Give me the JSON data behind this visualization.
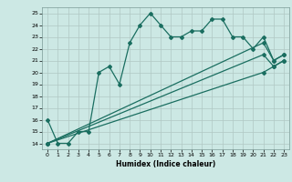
{
  "xlabel": "Humidex (Indice chaleur)",
  "background_color": "#cce8e4",
  "grid_color": "#b0c8c4",
  "line_color": "#1a6e60",
  "xlim": [
    -0.5,
    23.5
  ],
  "ylim": [
    13.5,
    25.5
  ],
  "xticks": [
    0,
    1,
    2,
    3,
    4,
    5,
    6,
    7,
    8,
    9,
    10,
    11,
    12,
    13,
    14,
    15,
    16,
    17,
    18,
    19,
    20,
    21,
    22,
    23
  ],
  "yticks": [
    14,
    15,
    16,
    17,
    18,
    19,
    20,
    21,
    22,
    23,
    24,
    25
  ],
  "series1_x": [
    0,
    1,
    2,
    3,
    4,
    5,
    6,
    7,
    8,
    9,
    10,
    11,
    12,
    13,
    14,
    15,
    16,
    17,
    18,
    19,
    20,
    21,
    22,
    23
  ],
  "series1_y": [
    16,
    14,
    14,
    15,
    15,
    20,
    20.5,
    19,
    22.5,
    24,
    25,
    24,
    23,
    23,
    23.5,
    23.5,
    24.5,
    24.5,
    23,
    23,
    22,
    23,
    21,
    21.5
  ],
  "series2_x": [
    0,
    21,
    22,
    23
  ],
  "series2_y": [
    14,
    22.5,
    21.0,
    21.5
  ],
  "series3_x": [
    0,
    21,
    22,
    23
  ],
  "series3_y": [
    14,
    21.5,
    20.5,
    21.0
  ],
  "series4_x": [
    0,
    21,
    22,
    23
  ],
  "series4_y": [
    14,
    20.0,
    20.5,
    21.0
  ],
  "marker_size": 2.0,
  "line_width": 0.9
}
